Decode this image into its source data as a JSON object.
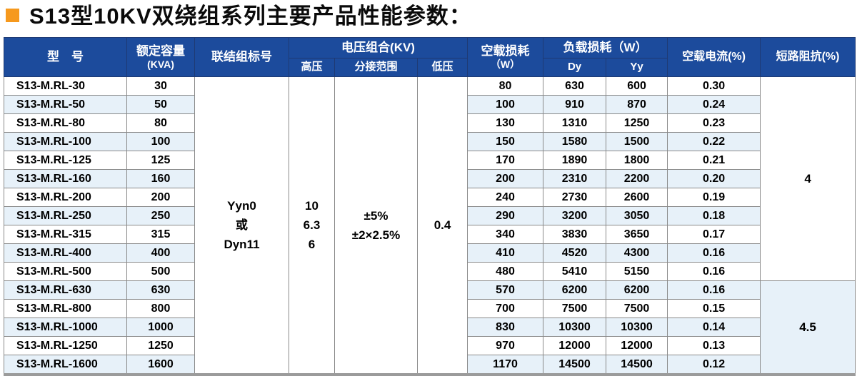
{
  "title": {
    "bullet_icon": "square-bullet",
    "text": "S13型10KV双绕组系列主要产品性能参数："
  },
  "colors": {
    "header_bg": "#1c4b9c",
    "stripe_bg": "#e7f1f9",
    "bullet": "#f6991d",
    "grid": "#8a8a8a"
  },
  "table": {
    "headers": {
      "model": "型　号",
      "capacity_l1": "额定容量",
      "capacity_l2": "(KVA)",
      "vector_group": "联结组标号",
      "voltage_group": "电压组合(KV)",
      "hv": "高压",
      "tap_range": "分接范围",
      "lv": "低压",
      "no_load_loss_l1": "空载损耗",
      "no_load_loss_l2": "（W）",
      "load_loss": "负载损耗（W）",
      "dy": "Dy",
      "yy": "Yy",
      "no_load_current": "空载电流(%)",
      "short_circuit_impedance": "短路阻抗(%)"
    },
    "merged": {
      "vector_group_lines": [
        "Yyn0",
        "或",
        "Dyn11"
      ],
      "hv_lines": [
        "10",
        "6.3",
        "6"
      ],
      "tap_range_lines": [
        "±5%",
        "±2×2.5%"
      ],
      "lv": "0.4",
      "impedance_groups": [
        {
          "value": "4",
          "row_span": 11
        },
        {
          "value": "4.5",
          "row_span": 5
        }
      ]
    },
    "rows": [
      {
        "model": "S13-M.RL-30",
        "kva": "30",
        "no_load_loss": "80",
        "dy": "630",
        "yy": "600",
        "no_load_current": "0.30"
      },
      {
        "model": "S13-M.RL-50",
        "kva": "50",
        "no_load_loss": "100",
        "dy": "910",
        "yy": "870",
        "no_load_current": "0.24"
      },
      {
        "model": "S13-M.RL-80",
        "kva": "80",
        "no_load_loss": "130",
        "dy": "1310",
        "yy": "1250",
        "no_load_current": "0.23"
      },
      {
        "model": "S13-M.RL-100",
        "kva": "100",
        "no_load_loss": "150",
        "dy": "1580",
        "yy": "1500",
        "no_load_current": "0.22"
      },
      {
        "model": "S13-M.RL-125",
        "kva": "125",
        "no_load_loss": "170",
        "dy": "1890",
        "yy": "1800",
        "no_load_current": "0.21"
      },
      {
        "model": "S13-M.RL-160",
        "kva": "160",
        "no_load_loss": "200",
        "dy": "2310",
        "yy": "2200",
        "no_load_current": "0.20"
      },
      {
        "model": "S13-M.RL-200",
        "kva": "200",
        "no_load_loss": "240",
        "dy": "2730",
        "yy": "2600",
        "no_load_current": "0.19"
      },
      {
        "model": "S13-M.RL-250",
        "kva": "250",
        "no_load_loss": "290",
        "dy": "3200",
        "yy": "3050",
        "no_load_current": "0.18"
      },
      {
        "model": "S13-M.RL-315",
        "kva": "315",
        "no_load_loss": "340",
        "dy": "3830",
        "yy": "3650",
        "no_load_current": "0.17"
      },
      {
        "model": "S13-M.RL-400",
        "kva": "400",
        "no_load_loss": "410",
        "dy": "4520",
        "yy": "4300",
        "no_load_current": "0.16"
      },
      {
        "model": "S13-M.RL-500",
        "kva": "500",
        "no_load_loss": "480",
        "dy": "5410",
        "yy": "5150",
        "no_load_current": "0.16"
      },
      {
        "model": "S13-M.RL-630",
        "kva": "630",
        "no_load_loss": "570",
        "dy": "6200",
        "yy": "6200",
        "no_load_current": "0.16"
      },
      {
        "model": "S13-M.RL-800",
        "kva": "800",
        "no_load_loss": "700",
        "dy": "7500",
        "yy": "7500",
        "no_load_current": "0.15"
      },
      {
        "model": "S13-M.RL-1000",
        "kva": "1000",
        "no_load_loss": "830",
        "dy": "10300",
        "yy": "10300",
        "no_load_current": "0.14"
      },
      {
        "model": "S13-M.RL-1250",
        "kva": "1250",
        "no_load_loss": "970",
        "dy": "12000",
        "yy": "12000",
        "no_load_current": "0.13"
      },
      {
        "model": "S13-M.RL-1600",
        "kva": "1600",
        "no_load_loss": "1170",
        "dy": "14500",
        "yy": "14500",
        "no_load_current": "0.12"
      }
    ]
  }
}
